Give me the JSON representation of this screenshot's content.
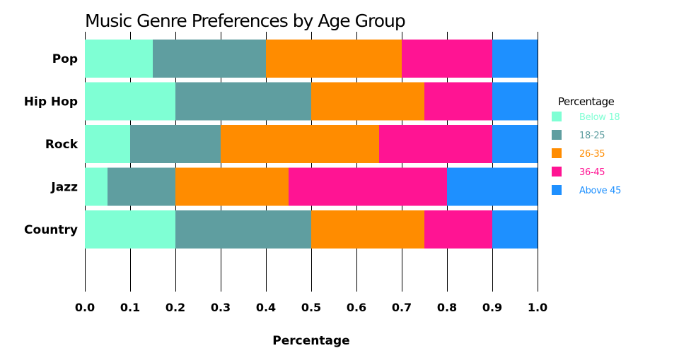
{
  "chart_data": {
    "type": "bar",
    "orientation": "horizontal",
    "stacked": true,
    "title": "Music Genre Preferences by Age Group",
    "xlabel": "Percentage",
    "ylabel": "",
    "xlim": [
      0,
      1
    ],
    "x_ticks": [
      "0.0",
      "0.1",
      "0.2",
      "0.3",
      "0.4",
      "0.5",
      "0.6",
      "0.7",
      "0.8",
      "0.9",
      "1.0"
    ],
    "grid": true,
    "categories": [
      "Pop",
      "Hip Hop",
      "Rock",
      "Jazz",
      "Country"
    ],
    "legend": {
      "title": "Percentage",
      "placement": "right"
    },
    "series": [
      {
        "name": "Below 18",
        "color": "#7FFFD4",
        "values": [
          0.15,
          0.2,
          0.1,
          0.05,
          0.2
        ]
      },
      {
        "name": "18-25",
        "color": "#5F9EA0",
        "values": [
          0.25,
          0.3,
          0.2,
          0.15,
          0.3
        ]
      },
      {
        "name": "26-35",
        "color": "#FF8C00",
        "values": [
          0.3,
          0.25,
          0.35,
          0.25,
          0.25
        ]
      },
      {
        "name": "36-45",
        "color": "#FF1493",
        "values": [
          0.2,
          0.15,
          0.25,
          0.35,
          0.15
        ]
      },
      {
        "name": "Above 45",
        "color": "#1E90FF",
        "values": [
          0.1,
          0.1,
          0.1,
          0.2,
          0.1
        ]
      }
    ]
  }
}
